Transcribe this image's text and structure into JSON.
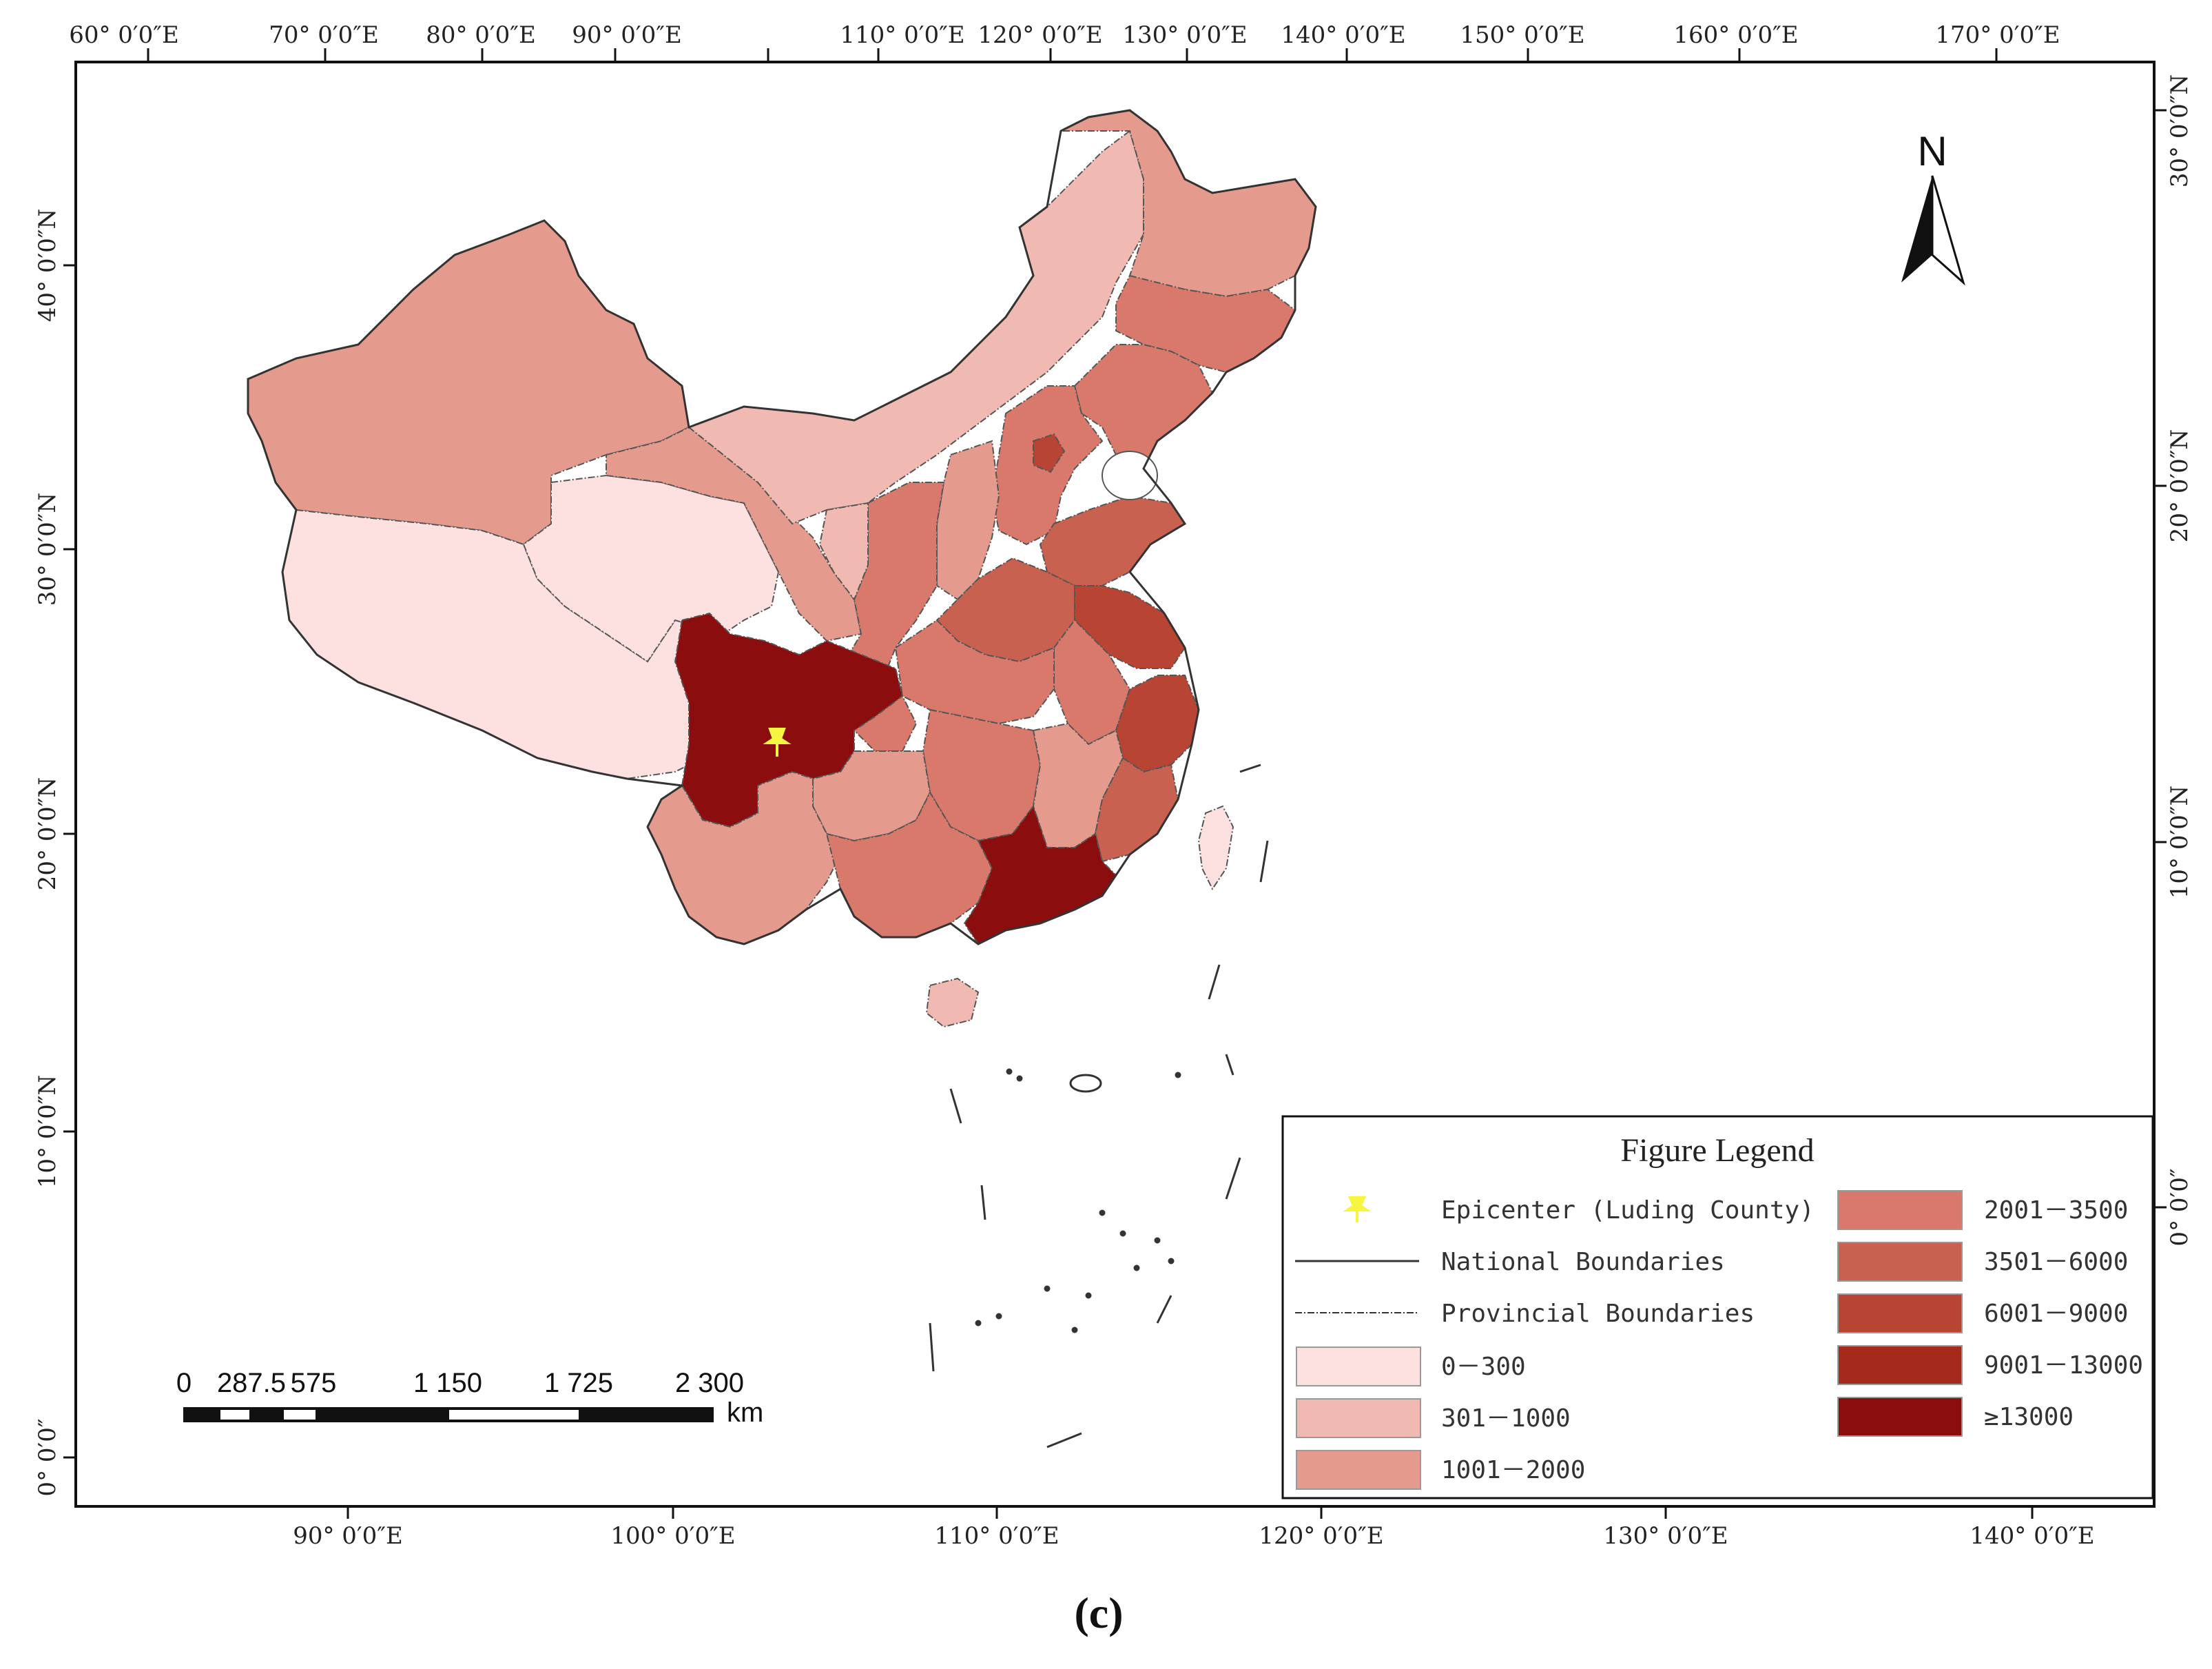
{
  "top_axis_labels": [
    "60° 0′0″E",
    "70° 0′0″E",
    "80° 0′0″E",
    "90° 0′0″E",
    "110° 0′0″E",
    "120° 0′0″E",
    "130° 0′0″E",
    "140° 0′0″E",
    "150° 0′0″E",
    "160° 0′0″E",
    "170° 0′0″E"
  ],
  "bottom_axis_labels": [
    "90° 0′0″E",
    "100° 0′0″E",
    "110° 0′0″E",
    "120° 0′0″E",
    "130° 0′0″E",
    "140° 0′0″E"
  ],
  "left_axis_labels": [
    "40° 0′0″N",
    "30° 0′0″N",
    "20° 0′0″N",
    "10° 0′0″N",
    "0° 0′0″"
  ],
  "right_axis_labels": [
    "30° 0′0″N",
    "20° 0′0″N",
    "10° 0′0″N",
    "0° 0′0″"
  ],
  "north_arrow": {
    "label": "N",
    "icon": "north-arrow-icon"
  },
  "scale_bar": {
    "ticks": [
      "0",
      "287.5",
      "575",
      "1 150",
      "1 725",
      "2 300"
    ],
    "unit": "km"
  },
  "legend": {
    "title": "Figure Legend",
    "symbols": [
      {
        "label": "Epicenter (Luding County)",
        "icon": "pushpin-icon",
        "color": "#f5f542"
      },
      {
        "label": "National Boundaries",
        "icon": "solid-line-icon"
      },
      {
        "label": "Provincial Boundaries",
        "icon": "dashed-line-icon"
      }
    ],
    "classes": [
      {
        "label": "0－300",
        "color": "#fde0e0"
      },
      {
        "label": "301－1000",
        "color": "#f0b9b2"
      },
      {
        "label": "1001－2000",
        "color": "#e49a8d"
      },
      {
        "label": "2001－3500",
        "color": "#d8796b"
      },
      {
        "label": "3501－6000",
        "color": "#c86150"
      },
      {
        "label": "6001－9000",
        "color": "#b84434"
      },
      {
        "label": "9001－13000",
        "color": "#a52a1c"
      },
      {
        "label": "≥13000",
        "color": "#8b0d0d"
      }
    ]
  },
  "caption": "(c)"
}
